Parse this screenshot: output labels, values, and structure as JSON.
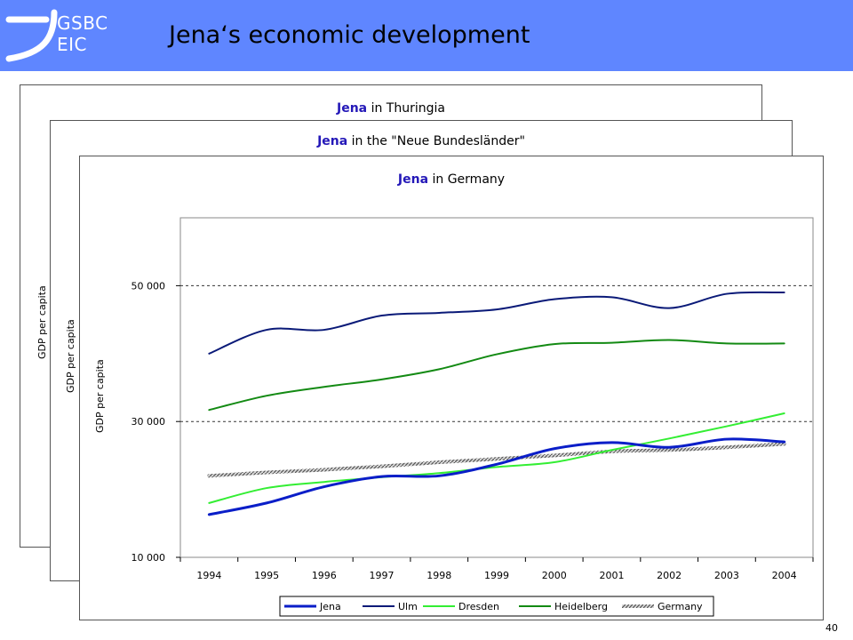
{
  "header": {
    "logo_line1": "GSBC",
    "logo_line2": "EIC",
    "title": "Jena‘s economic development",
    "color": "#5f86ff"
  },
  "cards": [
    {
      "title_highlight": "Jena",
      "title_rest": " in Thuringia",
      "ylabel": "GDP per capita"
    },
    {
      "title_highlight": "Jena",
      "title_rest": " in the \"Neue Bundesländer\"",
      "ylabel": "GDP per capita"
    },
    {
      "title_highlight": "Jena",
      "title_rest": " in Germany",
      "ylabel": "GDP per capita"
    }
  ],
  "page_number": "40",
  "chart_data": {
    "type": "line",
    "title": "Jena in Germany",
    "xlabel": "",
    "ylabel": "GDP per capita",
    "x": [
      1994,
      1995,
      1996,
      1997,
      1998,
      1999,
      2000,
      2001,
      2002,
      2003,
      2004
    ],
    "ylim": [
      10000,
      60000
    ],
    "yticks": [
      10000,
      30000,
      50000
    ],
    "ytick_labels": [
      "10 000",
      "30 000",
      "50 000"
    ],
    "dashed_gridlines": [
      30000,
      50000
    ],
    "legend_position": "bottom",
    "series": [
      {
        "name": "Jena",
        "color": "#0a1ec8",
        "width": 3,
        "values": [
          16300,
          18000,
          20400,
          21900,
          22000,
          23700,
          26000,
          26900,
          26200,
          27400,
          27000
        ]
      },
      {
        "name": "Ulm",
        "color": "#0a1a78",
        "width": 2,
        "values": [
          40000,
          43500,
          43500,
          45600,
          46000,
          46500,
          48000,
          48300,
          46700,
          48800,
          49000
        ]
      },
      {
        "name": "Dresden",
        "color": "#33ee33",
        "width": 2,
        "values": [
          18000,
          20200,
          21100,
          21800,
          22400,
          23300,
          24000,
          25800,
          27500,
          29300,
          31200
        ]
      },
      {
        "name": "Heidelberg",
        "color": "#138a13",
        "width": 2,
        "values": [
          31700,
          33800,
          35100,
          36200,
          37700,
          39900,
          41400,
          41600,
          42000,
          41500,
          41500
        ]
      },
      {
        "name": "Germany",
        "color": "#666666",
        "width": 4,
        "pattern": true,
        "values": [
          22000,
          22500,
          22900,
          23400,
          24000,
          24500,
          25000,
          25600,
          25800,
          26200,
          26700
        ]
      }
    ]
  }
}
